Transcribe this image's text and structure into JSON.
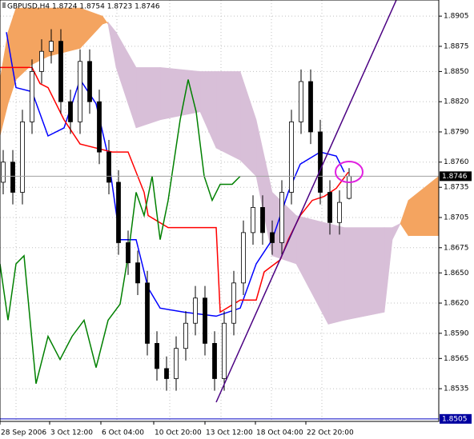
{
  "chart_data": {
    "type": "candlestick",
    "title": "GBPUSD,H4 1.8724 1.8754 1.8723 1.8746",
    "xlim": [
      0,
      137
    ],
    "xticks": [
      {
        "value": 0,
        "label": "28 Sep 2006"
      },
      {
        "value": 15.5,
        "label": "3 Oct 12:00"
      },
      {
        "value": 31.5,
        "label": "6 Oct 04:00"
      },
      {
        "value": 48,
        "label": "10 Oct 20:00"
      },
      {
        "value": 64,
        "label": "13 Oct 12:00"
      },
      {
        "value": 79.75,
        "label": "18 Oct 04:00"
      },
      {
        "value": 95.5,
        "label": "22 Oct 20:00"
      }
    ],
    "ylim": [
      1.85025,
      1.8921
    ],
    "yticks": [
      1.8905,
      1.8875,
      {
        "value": 1.885,
        "label": "1.8850"
      },
      {
        "value": 1.882,
        "label": "1.8820"
      },
      {
        "value": 1.879,
        "label": "1.8790"
      },
      {
        "value": 1.876,
        "label": "1.8760"
      },
      1.8735,
      1.8705,
      1.8675,
      {
        "value": 1.865,
        "label": "1.8650"
      },
      {
        "value": 1.862,
        "label": "1.8620"
      },
      {
        "value": 1.859,
        "label": "1.8590"
      },
      1.8565,
      1.8535
    ],
    "grid": true,
    "current_price": 1.8746,
    "level": 1.8505,
    "candles": {
      "x": [
        1,
        4,
        7,
        10,
        13,
        16,
        19,
        22,
        25,
        28,
        31,
        34,
        37,
        40,
        43,
        46,
        49,
        52,
        55,
        58,
        61,
        64,
        67,
        70,
        73,
        76,
        79,
        82,
        85,
        88,
        91,
        94,
        97,
        100,
        103,
        106,
        109
      ],
      "open": [
        1.874,
        1.876,
        1.873,
        1.88,
        1.885,
        1.887,
        1.888,
        1.882,
        1.88,
        1.886,
        1.882,
        1.877,
        1.874,
        1.868,
        1.866,
        1.864,
        1.858,
        1.8555,
        1.8545,
        1.8575,
        1.86,
        1.8625,
        1.858,
        1.8545,
        1.86,
        1.864,
        1.869,
        1.8715,
        1.869,
        1.868,
        1.873,
        1.88,
        1.884,
        1.879,
        1.873,
        1.87,
        1.8724
      ],
      "high": [
        1.8772,
        1.8772,
        1.8812,
        1.8862,
        1.8882,
        1.8892,
        1.8892,
        1.8832,
        1.8872,
        1.8872,
        1.8832,
        1.8782,
        1.8752,
        1.8692,
        1.8672,
        1.8652,
        1.8592,
        1.8567,
        1.8587,
        1.8612,
        1.8637,
        1.8637,
        1.8592,
        1.8612,
        1.8652,
        1.8702,
        1.8727,
        1.8727,
        1.8702,
        1.8742,
        1.8812,
        1.8852,
        1.8852,
        1.8802,
        1.8742,
        1.8732,
        1.8754
      ],
      "low": [
        1.8728,
        1.8718,
        1.8718,
        1.8788,
        1.8838,
        1.8858,
        1.8808,
        1.8788,
        1.8788,
        1.8808,
        1.8758,
        1.8728,
        1.8668,
        1.8648,
        1.8628,
        1.8568,
        1.8543,
        1.8533,
        1.8533,
        1.8563,
        1.8588,
        1.8568,
        1.8533,
        1.8533,
        1.8588,
        1.8628,
        1.8678,
        1.8678,
        1.8668,
        1.8668,
        1.8718,
        1.8788,
        1.8778,
        1.8718,
        1.8688,
        1.8688,
        1.8723
      ],
      "close": [
        1.876,
        1.873,
        1.88,
        1.885,
        1.887,
        1.888,
        1.882,
        1.88,
        1.886,
        1.882,
        1.877,
        1.874,
        1.868,
        1.866,
        1.864,
        1.858,
        1.8555,
        1.8545,
        1.8575,
        1.86,
        1.8625,
        1.858,
        1.8545,
        1.86,
        1.864,
        1.869,
        1.8715,
        1.869,
        1.868,
        1.873,
        1.88,
        1.884,
        1.879,
        1.873,
        1.87,
        1.872,
        1.8746
      ]
    },
    "cloud": {
      "x": [
        0,
        2.5,
        5,
        10,
        15,
        25,
        32,
        33.75,
        36.25,
        42.5,
        50,
        62.5,
        67.5,
        75,
        80,
        85,
        92.5,
        102.5,
        107.5,
        120,
        122.5,
        125,
        127.5,
        137
      ],
      "span_a": {
        "color": "#f4a460",
        "values": [
          1.8842,
          1.8889,
          1.8913,
          1.8913,
          1.8913,
          1.8913,
          1.8905,
          1.8897,
          1.8854,
          1.8794,
          1.8802,
          1.881,
          1.8774,
          1.8762,
          1.8746,
          1.8667,
          1.8659,
          1.8599,
          1.8603,
          1.8611,
          1.8683,
          1.8699,
          1.8722,
          1.8746
        ]
      },
      "span_b": {
        "color": "#d8bfd8",
        "values": [
          1.8786,
          1.8818,
          1.8842,
          1.8857,
          1.8865,
          1.8873,
          1.8897,
          1.8899,
          1.8889,
          1.8854,
          1.8854,
          1.885,
          1.885,
          1.885,
          1.8802,
          1.873,
          1.8707,
          1.8699,
          1.8695,
          1.8695,
          1.8695,
          1.8699,
          1.8687,
          1.8687
        ]
      }
    },
    "series": [
      {
        "color": "#0000ff",
        "x": [
          2,
          5,
          10,
          15,
          20,
          25,
          30,
          33.75,
          37.5,
          42.5,
          46.25,
          50,
          57.5,
          67.5,
          75,
          80,
          85,
          90,
          93.75,
          100,
          105,
          107.5
        ],
        "values": [
          1.8889,
          1.8834,
          1.883,
          1.8786,
          1.8794,
          1.8842,
          1.8818,
          1.8766,
          1.8683,
          1.8683,
          1.8635,
          1.8615,
          1.8611,
          1.8607,
          1.8615,
          1.8659,
          1.8683,
          1.873,
          1.8758,
          1.877,
          1.8766,
          1.875
        ]
      },
      {
        "color": "#ff0000",
        "x": [
          0,
          10,
          12.5,
          15,
          20,
          25,
          35,
          40,
          45,
          46.25,
          52.5,
          67.5,
          68.75,
          75,
          80,
          82.5,
          87.5,
          90,
          93.75,
          97.5,
          101.25,
          105,
          108.75
        ],
        "values": [
          1.8854,
          1.8854,
          1.8838,
          1.8834,
          1.8802,
          1.8778,
          1.877,
          1.877,
          1.873,
          1.8707,
          1.8695,
          1.8695,
          1.8611,
          1.8623,
          1.8623,
          1.8651,
          1.8663,
          1.8683,
          1.8707,
          1.8722,
          1.8726,
          1.8734,
          1.875
        ]
      },
      {
        "color": "#008000",
        "x": [
          0,
          2.5,
          5,
          7.5,
          11.25,
          15,
          18.75,
          22.5,
          26.25,
          30,
          33.75,
          37.5,
          40,
          42.5,
          45,
          47.5,
          50,
          52.5,
          56.25,
          58.75,
          61.25,
          63.75,
          66.25,
          68.75,
          72.5,
          75
        ],
        "values": [
          1.8659,
          1.8603,
          1.8659,
          1.8667,
          1.854,
          1.8587,
          1.8564,
          1.8587,
          1.8603,
          1.8556,
          1.8603,
          1.8619,
          1.8667,
          1.873,
          1.8707,
          1.8746,
          1.8683,
          1.8722,
          1.8802,
          1.8842,
          1.881,
          1.8746,
          1.8722,
          1.8738,
          1.8738,
          1.8746
        ]
      }
    ]
  }
}
